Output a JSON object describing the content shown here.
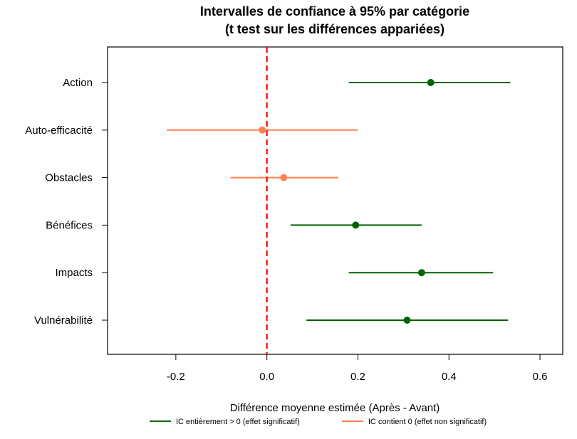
{
  "chart_data": {
    "type": "forest",
    "title_line1": "Intervalles de confiance à 95% par catégorie",
    "title_line2": "(t test sur les différences appariées)",
    "xlabel": "Différence moyenne estimée (Après - Avant)",
    "xlim": [
      -0.35,
      0.65
    ],
    "xticks": [
      -0.2,
      0.0,
      0.2,
      0.4,
      0.6
    ],
    "xtick_labels": [
      "-0.2",
      "0.0",
      "0.2",
      "0.4",
      "0.6"
    ],
    "reference_line": 0.0,
    "reference_color": "#FF0000",
    "colors": {
      "significant": "#006400",
      "not_significant": "#FF7F50"
    },
    "categories": [
      {
        "label": "Action",
        "estimate": 0.36,
        "lower": 0.18,
        "upper": 0.535,
        "significant": true
      },
      {
        "label": "Auto-efficacité",
        "estimate": -0.01,
        "lower": -0.22,
        "upper": 0.2,
        "significant": false
      },
      {
        "label": "Obstacles",
        "estimate": 0.037,
        "lower": -0.08,
        "upper": 0.157,
        "significant": false
      },
      {
        "label": "Bénéfices",
        "estimate": 0.195,
        "lower": 0.052,
        "upper": 0.34,
        "significant": true
      },
      {
        "label": "Impacts",
        "estimate": 0.34,
        "lower": 0.18,
        "upper": 0.497,
        "significant": true
      },
      {
        "label": "Vulnérabilité",
        "estimate": 0.308,
        "lower": 0.087,
        "upper": 0.53,
        "significant": true
      }
    ],
    "legend": [
      {
        "label": "IC entièrement > 0 (effet significatif)",
        "key": "significant"
      },
      {
        "label": "IC contient 0 (effet non significatif)",
        "key": "not_significant"
      }
    ]
  }
}
